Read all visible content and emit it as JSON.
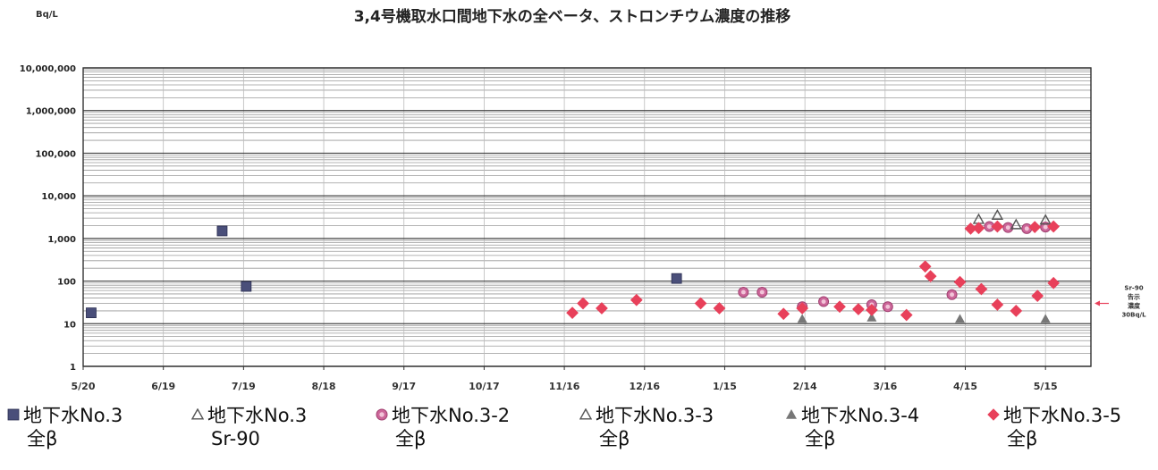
{
  "chart_data": {
    "type": "scatter",
    "title": "3,4号機取水口間地下水の全ベータ、ストロンチウム濃度の推移",
    "ylabel": "Bq/L",
    "y_scale": "log",
    "ylim": [
      1,
      10000000
    ],
    "y_ticks": [
      {
        "value": 10000000,
        "label": "10,000,000"
      },
      {
        "value": 1000000,
        "label": "1,000,000"
      },
      {
        "value": 100000,
        "label": "100,000"
      },
      {
        "value": 10000,
        "label": "10,000"
      },
      {
        "value": 1000,
        "label": "1,000"
      },
      {
        "value": 100,
        "label": "100"
      },
      {
        "value": 10,
        "label": "10"
      },
      {
        "value": 1,
        "label": "1"
      }
    ],
    "xlim": [
      "2013-05-20",
      "2014-06-01"
    ],
    "x_ticks": [
      {
        "date": "2013-05-20",
        "label": "5/20"
      },
      {
        "date": "2013-06-19",
        "label": "6/19"
      },
      {
        "date": "2013-07-19",
        "label": "7/19"
      },
      {
        "date": "2013-08-18",
        "label": "8/18"
      },
      {
        "date": "2013-09-17",
        "label": "9/17"
      },
      {
        "date": "2013-10-17",
        "label": "10/17"
      },
      {
        "date": "2013-11-16",
        "label": "11/16"
      },
      {
        "date": "2013-12-16",
        "label": "12/16"
      },
      {
        "date": "2014-01-15",
        "label": "1/15"
      },
      {
        "date": "2014-02-14",
        "label": "2/14"
      },
      {
        "date": "2014-03-16",
        "label": "3/16"
      },
      {
        "date": "2014-04-15",
        "label": "4/15"
      },
      {
        "date": "2014-05-15",
        "label": "5/15"
      }
    ],
    "grid": true,
    "legend_position": "bottom",
    "annotation": {
      "text": [
        "Sr-90",
        "告示",
        "濃度",
        "30Bq/L"
      ],
      "value": 30
    },
    "series": [
      {
        "name": "地下水No.3",
        "sub": "全β",
        "marker": "square",
        "color": "#4a4f7a",
        "points": [
          {
            "x": "2013-05-23",
            "y": 18
          },
          {
            "x": "2013-07-11",
            "y": 1500
          },
          {
            "x": "2013-07-20",
            "y": 75
          },
          {
            "x": "2013-12-28",
            "y": 115
          }
        ]
      },
      {
        "name": "地下水No.3",
        "sub": "Sr-90",
        "marker": "triangle-open",
        "color": "#555555",
        "points": []
      },
      {
        "name": "地下水No.3-2",
        "sub": "全β",
        "marker": "circle",
        "color": "#cc6699",
        "points": [
          {
            "x": "2014-01-22",
            "y": 55
          },
          {
            "x": "2014-01-29",
            "y": 55
          },
          {
            "x": "2014-02-13",
            "y": 25
          },
          {
            "x": "2014-02-21",
            "y": 33
          },
          {
            "x": "2014-03-11",
            "y": 28
          },
          {
            "x": "2014-03-17",
            "y": 25
          },
          {
            "x": "2014-04-10",
            "y": 48
          },
          {
            "x": "2014-04-24",
            "y": 1900
          },
          {
            "x": "2014-05-01",
            "y": 1800
          },
          {
            "x": "2014-05-08",
            "y": 1700
          },
          {
            "x": "2014-05-15",
            "y": 1850
          }
        ]
      },
      {
        "name": "地下水No.3-3",
        "sub": "全β",
        "marker": "triangle-open",
        "color": "#555555",
        "points": [
          {
            "x": "2014-04-20",
            "y": 2800
          },
          {
            "x": "2014-04-27",
            "y": 3500
          },
          {
            "x": "2014-05-04",
            "y": 2100
          },
          {
            "x": "2014-05-15",
            "y": 2700
          }
        ]
      },
      {
        "name": "地下水No.3-4",
        "sub": "全β",
        "marker": "triangle",
        "color": "#777777",
        "points": [
          {
            "x": "2014-02-13",
            "y": 13
          },
          {
            "x": "2014-03-11",
            "y": 14
          },
          {
            "x": "2014-04-13",
            "y": 13
          },
          {
            "x": "2014-05-15",
            "y": 13
          }
        ]
      },
      {
        "name": "地下水No.3-5",
        "sub": "全β",
        "marker": "diamond",
        "color": "#e8405a",
        "points": [
          {
            "x": "2013-11-19",
            "y": 18
          },
          {
            "x": "2013-11-23",
            "y": 30
          },
          {
            "x": "2013-11-30",
            "y": 23
          },
          {
            "x": "2013-12-13",
            "y": 36
          },
          {
            "x": "2014-01-06",
            "y": 30
          },
          {
            "x": "2014-01-13",
            "y": 23
          },
          {
            "x": "2014-02-06",
            "y": 17
          },
          {
            "x": "2014-02-13",
            "y": 23
          },
          {
            "x": "2014-02-27",
            "y": 25
          },
          {
            "x": "2014-03-06",
            "y": 22
          },
          {
            "x": "2014-03-11",
            "y": 21
          },
          {
            "x": "2014-03-24",
            "y": 16
          },
          {
            "x": "2014-03-31",
            "y": 220
          },
          {
            "x": "2014-04-02",
            "y": 130
          },
          {
            "x": "2014-04-13",
            "y": 95
          },
          {
            "x": "2014-04-17",
            "y": 1700
          },
          {
            "x": "2014-04-20",
            "y": 1750
          },
          {
            "x": "2014-04-21",
            "y": 65
          },
          {
            "x": "2014-04-27",
            "y": 1900
          },
          {
            "x": "2014-04-27",
            "y": 28
          },
          {
            "x": "2014-05-04",
            "y": 20
          },
          {
            "x": "2014-05-11",
            "y": 1850
          },
          {
            "x": "2014-05-12",
            "y": 45
          },
          {
            "x": "2014-05-18",
            "y": 1900
          },
          {
            "x": "2014-05-18",
            "y": 90
          }
        ]
      }
    ]
  }
}
